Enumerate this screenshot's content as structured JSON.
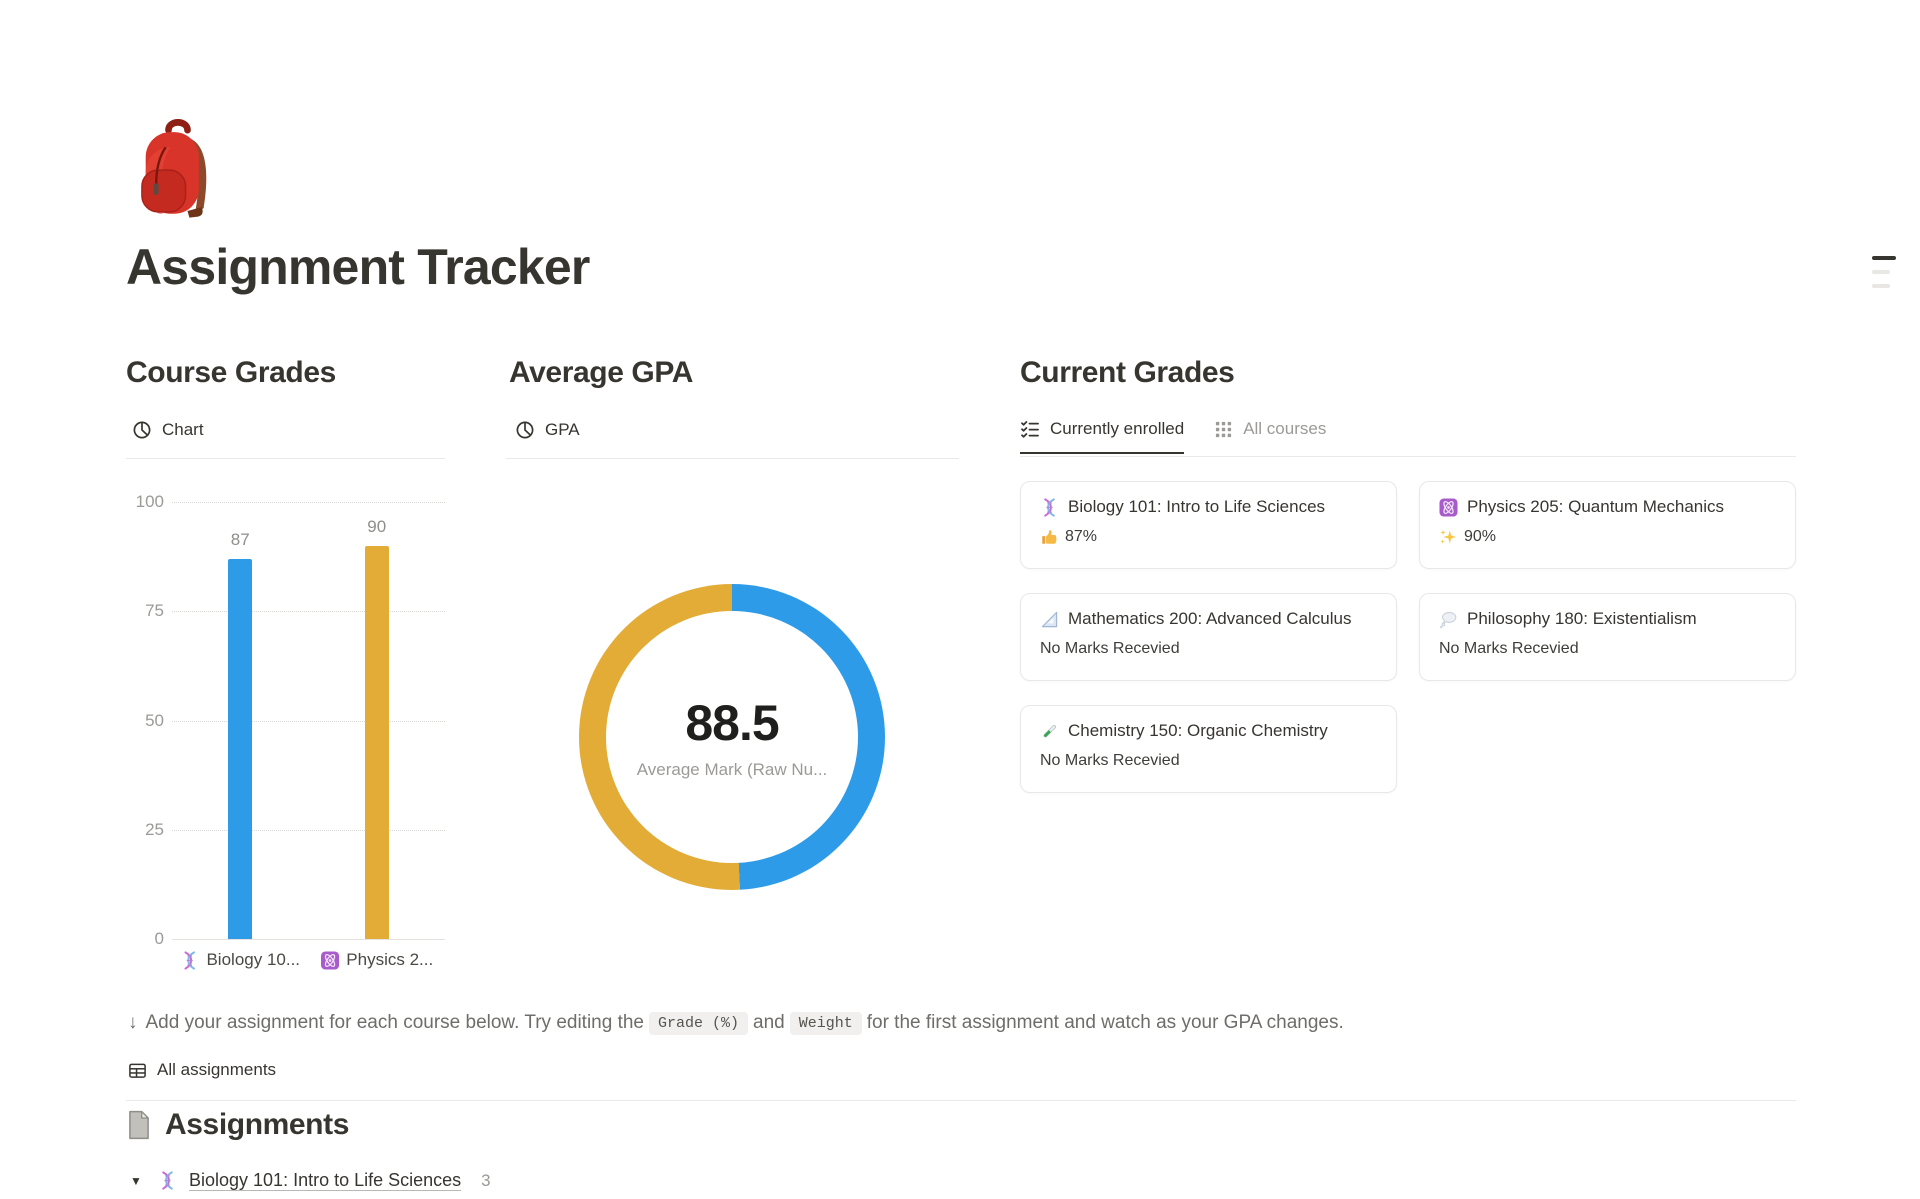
{
  "page": {
    "title": "Assignment Tracker",
    "icon": "backpack-emoji"
  },
  "toc_widget": {
    "icon": "table-of-contents-icon"
  },
  "sections": {
    "course_grades": {
      "heading": "Course Grades",
      "embed": {
        "icon": "pie-chart-icon",
        "label": "Chart"
      },
      "chart_data": {
        "type": "bar",
        "title": "Course Grades",
        "categories": [
          "Biology 10...",
          "Physics 2..."
        ],
        "category_icons": [
          "dna-emoji",
          "atom-emoji"
        ],
        "values": [
          87,
          90
        ],
        "bar_colors": [
          "#2D9BE8",
          "#E2AC37"
        ],
        "ylim": [
          0,
          100
        ],
        "yticks": [
          100,
          75,
          50,
          25,
          0
        ],
        "grid": "dotted-horizontal",
        "legend": "none"
      }
    },
    "average_gpa": {
      "heading": "Average GPA",
      "embed": {
        "icon": "pie-chart-icon",
        "label": "GPA"
      },
      "chart_data": {
        "type": "pie",
        "style": "donut",
        "center_value": "88.5",
        "center_label": "Average Mark (Raw Nu...",
        "slices": [
          {
            "name": "Biology 101",
            "value": 87,
            "color": "#2D9BE8"
          },
          {
            "name": "Physics 205",
            "value": 90,
            "color": "#E2AC37"
          }
        ]
      }
    },
    "current_grades": {
      "heading": "Current Grades",
      "tabs": [
        {
          "icon": "checklist-icon",
          "label": "Currently enrolled",
          "active": true
        },
        {
          "icon": "grid-icon",
          "label": "All courses",
          "active": false
        }
      ],
      "cards": [
        {
          "icon": "dna-emoji",
          "title": "Biology 101: Intro to Life Sciences",
          "grade_icon": "thumbs-up-emoji",
          "grade": "87%"
        },
        {
          "icon": "atom-emoji",
          "title": "Physics 205: Quantum Mechanics",
          "grade_icon": "sparkles-emoji",
          "grade": "90%"
        },
        {
          "icon": "triangle-ruler-emoji",
          "title": "Mathematics 200: Advanced Calculus",
          "grade_icon": null,
          "grade": "No Marks Recevied"
        },
        {
          "icon": "thought-balloon-emoji",
          "title": "Philosophy 180: Existentialism",
          "grade_icon": null,
          "grade": "No Marks Recevied"
        },
        {
          "icon": "test-tube-emoji",
          "title": "Chemistry 150: Organic Chemistry",
          "grade_icon": null,
          "grade": "No Marks Recevied"
        }
      ]
    },
    "instructions": {
      "arrow_icon": "↓",
      "text_before": "Add your assignment for each course below. Try editing the",
      "code_1": "Grade (%)",
      "text_between": "and",
      "code_2": "Weight",
      "text_after": "for the first assignment and watch as your GPA changes."
    },
    "all_assignments": {
      "icon": "table-icon",
      "label": "All assignments"
    },
    "assignments": {
      "icon": "document-icon",
      "heading": "Assignments",
      "groups": [
        {
          "toggle_icon": "▼",
          "course_icon": "dna-emoji",
          "title": "Biology 101: Intro to Life Sciences",
          "count": "3"
        }
      ]
    }
  }
}
